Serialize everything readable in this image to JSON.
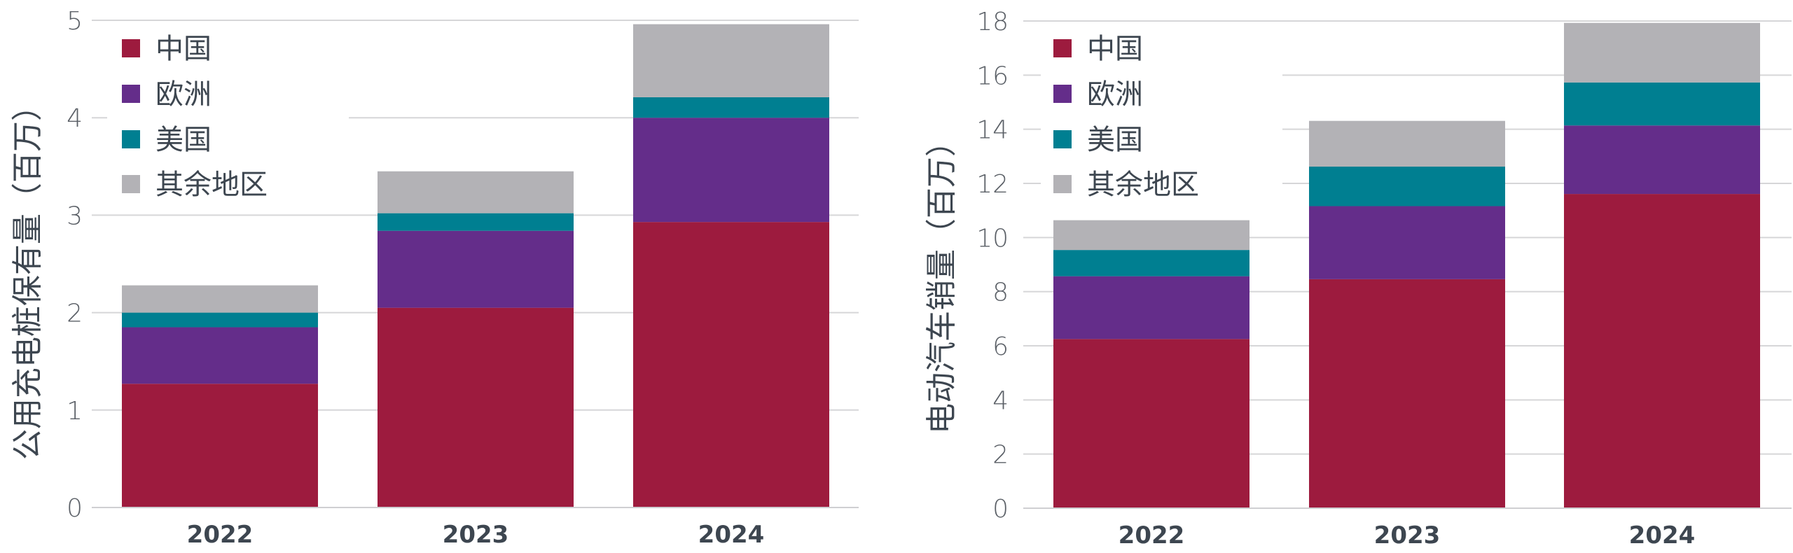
{
  "chart_data": [
    {
      "type": "bar",
      "stacked": true,
      "title": "",
      "xlabel": "",
      "ylabel": "公用充电桩保有量（百万）",
      "ylim": [
        0,
        5
      ],
      "yticks": [
        0,
        1,
        2,
        3,
        4,
        5
      ],
      "grid": true,
      "legend_position": "top-left",
      "categories": [
        "2022",
        "2023",
        "2024"
      ],
      "series": [
        {
          "name": "中国",
          "color": "#9d1b3e",
          "values": [
            1.27,
            2.05,
            2.93
          ]
        },
        {
          "name": "欧洲",
          "color": "#642d8a",
          "values": [
            0.58,
            0.79,
            1.07
          ]
        },
        {
          "name": "美国",
          "color": "#007f91",
          "values": [
            0.15,
            0.18,
            0.21
          ]
        },
        {
          "name": "其余地区",
          "color": "#b3b2b6",
          "values": [
            0.28,
            0.43,
            0.75
          ]
        }
      ]
    },
    {
      "type": "bar",
      "stacked": true,
      "title": "",
      "xlabel": "",
      "ylabel": "电动汽车销量（百万）",
      "ylim": [
        0,
        18
      ],
      "yticks": [
        0,
        2,
        4,
        6,
        8,
        10,
        12,
        14,
        16,
        18
      ],
      "grid": true,
      "legend_position": "top-left",
      "categories": [
        "2022",
        "2023",
        "2024"
      ],
      "series": [
        {
          "name": "中国",
          "color": "#9d1b3e",
          "values": [
            6.25,
            8.46,
            11.61
          ]
        },
        {
          "name": "欧洲",
          "color": "#642d8a",
          "values": [
            2.32,
            2.7,
            2.53
          ]
        },
        {
          "name": "美国",
          "color": "#007f91",
          "values": [
            0.97,
            1.46,
            1.59
          ]
        },
        {
          "name": "其余地区",
          "color": "#b3b2b6",
          "values": [
            1.1,
            1.69,
            2.2
          ]
        }
      ]
    }
  ]
}
